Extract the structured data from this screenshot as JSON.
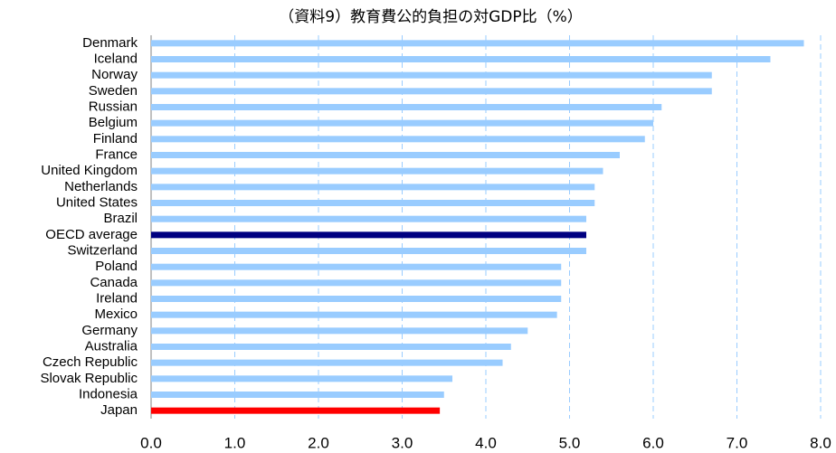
{
  "chart_data": {
    "type": "barh",
    "title": "（資料9）教育費公的負担の対GDP比（%）",
    "categories": [
      "Denmark",
      "Iceland",
      "Norway",
      "Sweden",
      "Russian",
      "Belgium",
      "Finland",
      "France",
      "United Kingdom",
      "Netherlands",
      "United States",
      "Brazil",
      "OECD average",
      "Switzerland",
      "Poland",
      "Canada",
      "Ireland",
      "Mexico",
      "Germany",
      "Australia",
      "Czech Republic",
      "Slovak Republic",
      "Indonesia",
      "Japan"
    ],
    "values": [
      7.8,
      7.4,
      6.7,
      6.7,
      6.1,
      6.0,
      5.9,
      5.6,
      5.4,
      5.3,
      5.3,
      5.2,
      5.2,
      5.2,
      4.9,
      4.9,
      4.9,
      4.85,
      4.5,
      4.3,
      4.2,
      3.6,
      3.5,
      3.45
    ],
    "colors": [
      "#99ccff",
      "#99ccff",
      "#99ccff",
      "#99ccff",
      "#99ccff",
      "#99ccff",
      "#99ccff",
      "#99ccff",
      "#99ccff",
      "#99ccff",
      "#99ccff",
      "#99ccff",
      "#000080",
      "#99ccff",
      "#99ccff",
      "#99ccff",
      "#99ccff",
      "#99ccff",
      "#99ccff",
      "#99ccff",
      "#99ccff",
      "#99ccff",
      "#99ccff",
      "#ff0000"
    ],
    "xlim": [
      0,
      8
    ],
    "xticks": [
      {
        "value": 0,
        "label": "0.0"
      },
      {
        "value": 1,
        "label": "1.0"
      },
      {
        "value": 2,
        "label": "2.0"
      },
      {
        "value": 3,
        "label": "3.0"
      },
      {
        "value": 4,
        "label": "4.0"
      },
      {
        "value": 5,
        "label": "5.0"
      },
      {
        "value": 6,
        "label": "6.0"
      },
      {
        "value": 7,
        "label": "7.0"
      },
      {
        "value": 8,
        "label": "8.0"
      }
    ],
    "grid": true
  }
}
